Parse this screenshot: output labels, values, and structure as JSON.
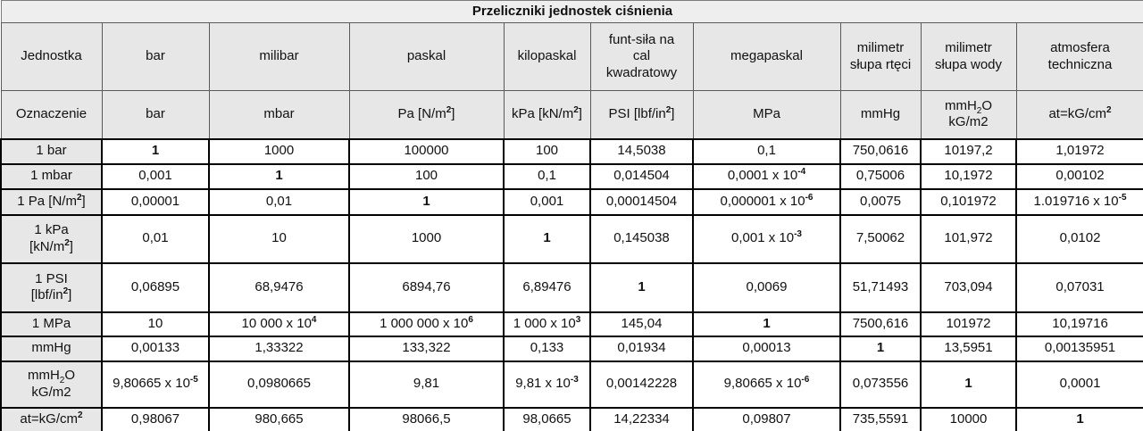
{
  "title": "Przeliczniki jednostek ciśnienia",
  "table": {
    "unit_row_label": "Jednostka",
    "symbol_row_label": "Oznaczenie",
    "unit_names": [
      "bar",
      "milibar",
      "paskal",
      "kilopaskal",
      "funt-siła na\ncal\nkwadratowy",
      "megapaskal",
      "milimetr\nsłupa rtęci",
      "milimetr\nsłupa wody",
      "atmosfera\ntechniczna"
    ],
    "unit_symbols": [
      "bar",
      "mbar",
      "Pa [N/m^{2}]",
      "kPa [kN/m^{2}]",
      "PSI [lbf/in^{2}]",
      "MPa",
      "mmHg",
      "mmH_{2}O\nkG/m2",
      "at=kG/cm^{2}"
    ],
    "rows": [
      {
        "label": "1 bar",
        "values": [
          "1",
          "1000",
          "100000",
          "100",
          "14,5038",
          "0,1",
          "750,0616",
          "10197,2",
          "1,01972"
        ]
      },
      {
        "label": "1 mbar",
        "values": [
          "0,001",
          "1",
          "100",
          "0,1",
          "0,014504",
          "0,0001 x 10^{-4}",
          "0,75006",
          "10,1972",
          "0,00102"
        ]
      },
      {
        "label": "1 Pa [N/m^{2}]",
        "values": [
          "0,00001",
          "0,01",
          "1",
          "0,001",
          "0,00014504",
          "0,000001 x 10^{-6}",
          "0,0075",
          "0,101972",
          "1.019716 x 10^{-5}"
        ]
      },
      {
        "label": "1 kPa\n[kN/m^{2}]",
        "values": [
          "0,01",
          "10",
          "1000",
          "1",
          "0,145038",
          "0,001 x 10^{-3}",
          "7,50062",
          "101,972",
          "0,0102"
        ]
      },
      {
        "label": "1 PSI\n[lbf/in^{2}]",
        "values": [
          "0,06895",
          "68,9476",
          "6894,76",
          "6,89476",
          "1",
          "0,0069",
          "51,71493",
          "703,094",
          "0,07031"
        ]
      },
      {
        "label": "1 MPa",
        "values": [
          "10",
          "10 000 x 10^{4}",
          "1 000 000 x 10^{6}",
          "1 000 x 10^{3}",
          "145,04",
          "1",
          "7500,616",
          "101972",
          "10,19716"
        ]
      },
      {
        "label": "mmHg",
        "values": [
          "0,00133",
          "1,33322",
          "133,322",
          "0,133",
          "0,01934",
          "0,00013",
          "1",
          "13,5951",
          "0,00135951"
        ]
      },
      {
        "label": "mmH_{2}O\nkG/m2",
        "values": [
          "9,80665 x 10^{-5}",
          "0,0980665",
          "9,81",
          "9,81 x 10^{-3}",
          "0,00142228",
          "9,80665 x 10^{-6}",
          "0,073556",
          "1",
          "0,0001"
        ]
      },
      {
        "label": "at=kG/cm^{2}",
        "values": [
          "0,98067",
          "980,665",
          "98066,5",
          "98,0665",
          "14,22334",
          "0,09807",
          "735,5591",
          "10000",
          "1"
        ]
      }
    ]
  }
}
